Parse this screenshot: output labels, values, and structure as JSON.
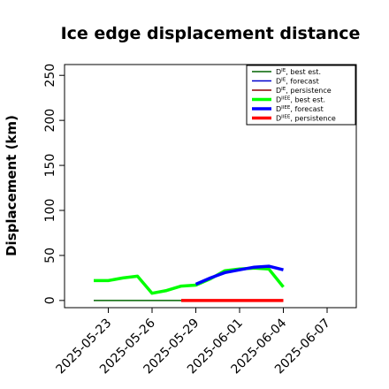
{
  "chart_data": {
    "type": "line",
    "title": "Ice edge displacement distance",
    "xlabel": "",
    "ylabel": "Displacement (km)",
    "x_ticks": [
      "2025-05-23",
      "2025-05-26",
      "2025-05-29",
      "2025-06-01",
      "2025-06-04",
      "2025-06-07"
    ],
    "highlight_tick": "2025-05-29",
    "highlight_color": "#228b22",
    "xlim": [
      "2025-05-20",
      "2025-06-09"
    ],
    "ylim": [
      -8,
      262
    ],
    "y_ticks": [
      0,
      50,
      100,
      150,
      200,
      250
    ],
    "grid": false,
    "legend_position": "top-right",
    "series": [
      {
        "name": "D",
        "sup": "IE",
        "suffix": ", best est.",
        "color": "#006400",
        "width": "thin",
        "points": [
          [
            "2025-05-22",
            0
          ],
          [
            "2025-05-29",
            0
          ]
        ]
      },
      {
        "name": "D",
        "sup": "IE",
        "suffix": ", forecast",
        "color": "#0000cd",
        "width": "thin",
        "points": []
      },
      {
        "name": "D",
        "sup": "IE",
        "suffix": ", persistence",
        "color": "#8b0000",
        "width": "thin",
        "points": [
          [
            "2025-05-28",
            0
          ],
          [
            "2025-06-04",
            0
          ]
        ]
      },
      {
        "name": "D",
        "sup": "IIEE",
        "suffix": ", best est.",
        "color": "#00ff00",
        "width": "thick",
        "points": [
          [
            "2025-05-22",
            22
          ],
          [
            "2025-05-23",
            22
          ],
          [
            "2025-05-24",
            25
          ],
          [
            "2025-05-25",
            27
          ],
          [
            "2025-05-26",
            8
          ],
          [
            "2025-05-27",
            11
          ],
          [
            "2025-05-28",
            16
          ],
          [
            "2025-05-29",
            17
          ],
          [
            "2025-05-30",
            24
          ],
          [
            "2025-05-31",
            33
          ],
          [
            "2025-06-01",
            35
          ],
          [
            "2025-06-02",
            36
          ],
          [
            "2025-06-03",
            35
          ],
          [
            "2025-06-04",
            15
          ]
        ]
      },
      {
        "name": "D",
        "sup": "IIEE",
        "suffix": ", forecast",
        "color": "#0000ff",
        "width": "thick",
        "points": [
          [
            "2025-05-29",
            18
          ],
          [
            "2025-05-30",
            25
          ],
          [
            "2025-05-31",
            31
          ],
          [
            "2025-06-01",
            34
          ],
          [
            "2025-06-02",
            37
          ],
          [
            "2025-06-03",
            38
          ],
          [
            "2025-06-04",
            34
          ]
        ]
      },
      {
        "name": "D",
        "sup": "IIEE",
        "suffix": ", persistence",
        "color": "#ff0000",
        "width": "thick",
        "points": [
          [
            "2025-05-28",
            0
          ],
          [
            "2025-06-04",
            0
          ]
        ]
      }
    ]
  }
}
